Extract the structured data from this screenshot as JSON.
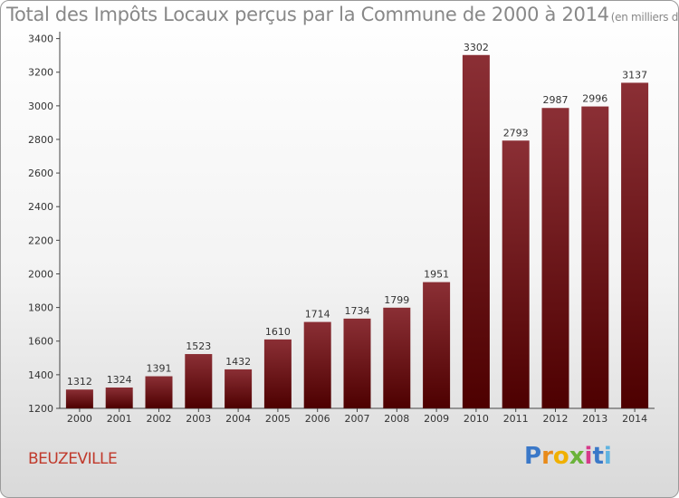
{
  "title": "Total des Impôts Locaux perçus par la Commune de 2000 à 2014",
  "title_unit": "(en milliers d'€)",
  "commune": "BEUZEVILLE",
  "logo": {
    "letters": [
      "P",
      "r",
      "o",
      "x",
      "i",
      "t",
      "i"
    ],
    "colors": [
      "#3a78c8",
      "#e88a1a",
      "#f0b000",
      "#6bb33a",
      "#d63a8a",
      "#3a78c8",
      "#5fb3e0"
    ]
  },
  "colors": {
    "bar_dark": "#4d0000",
    "bar_light": "#8b2f35",
    "axis": "#444444",
    "text": "#333333"
  },
  "chart_data": {
    "type": "bar",
    "categories": [
      "2000",
      "2001",
      "2002",
      "2003",
      "2004",
      "2005",
      "2006",
      "2007",
      "2008",
      "2009",
      "2010",
      "2011",
      "2012",
      "2013",
      "2014"
    ],
    "values": [
      1312,
      1324,
      1391,
      1523,
      1432,
      1610,
      1714,
      1734,
      1799,
      1951,
      3302,
      2793,
      2987,
      2996,
      3137
    ],
    "yticks": [
      1200,
      1400,
      1600,
      1800,
      2000,
      2200,
      2400,
      2600,
      2800,
      3000,
      3200,
      3400
    ],
    "ylim": [
      1200,
      3430
    ],
    "grid": false,
    "data_labels": true
  }
}
